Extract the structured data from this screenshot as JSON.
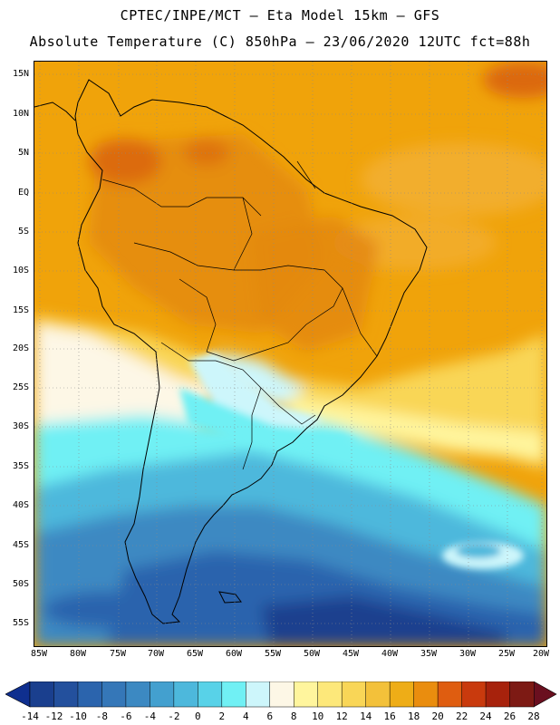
{
  "header": {
    "line1": "CPTEC/INPE/MCT –  Eta Model 15km – GFS",
    "line2": "Absolute Temperature (C) 850hPa – 23/06/2020 12UTC fct=88h"
  },
  "map": {
    "lat_labels": [
      "15N",
      "10N",
      "5N",
      "EQ",
      "5S",
      "10S",
      "15S",
      "20S",
      "25S",
      "30S",
      "35S",
      "40S",
      "45S",
      "50S",
      "55S"
    ],
    "lon_labels": [
      "85W",
      "80W",
      "75W",
      "70W",
      "65W",
      "60W",
      "55W",
      "50W",
      "45W",
      "40W",
      "35W",
      "30W",
      "25W",
      "20W"
    ]
  },
  "colorbar": {
    "labels": [
      "-14",
      "-12",
      "-10",
      "-8",
      "-6",
      "-4",
      "-2",
      "0",
      "2",
      "4",
      "6",
      "8",
      "10",
      "12",
      "14",
      "16",
      "18",
      "20",
      "22",
      "24",
      "26",
      "28"
    ],
    "under_color": "#0f2f8f",
    "over_color": "#6a0f1f",
    "colors": [
      "#1a3f8e",
      "#23509d",
      "#2b64ad",
      "#3577b8",
      "#3c89c2",
      "#43a0cf",
      "#4db8dc",
      "#58d2e8",
      "#70f0f4",
      "#cdf6fb",
      "#fdf7e6",
      "#fff59d",
      "#fde87a",
      "#f9d657",
      "#f3c13a",
      "#eead17",
      "#ea8d0e",
      "#df5d10",
      "#c93a0d",
      "#a7220c",
      "#7d1a14"
    ]
  }
}
